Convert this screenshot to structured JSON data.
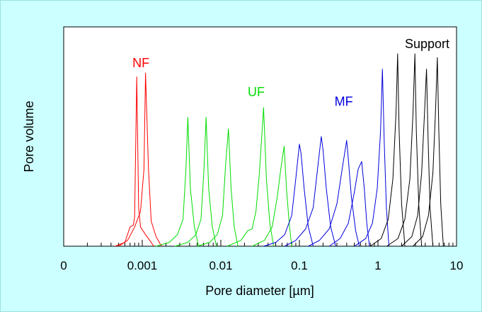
{
  "chart_data": {
    "type": "line",
    "title": "",
    "xlabel": "Pore diameter  [µm]",
    "ylabel": "Pore volume",
    "x_scale": "log",
    "xlim": [
      0.0001,
      10
    ],
    "ylim": [
      0,
      1
    ],
    "y_ticks_labeled": false,
    "grid": false,
    "x_ticks": [
      {
        "value": 0.0001,
        "label": "0"
      },
      {
        "value": 0.001,
        "label": "0.001"
      },
      {
        "value": 0.01,
        "label": "0.01"
      },
      {
        "value": 0.1,
        "label": "0.1"
      },
      {
        "value": 1,
        "label": "1"
      },
      {
        "value": 10,
        "label": "10"
      }
    ],
    "groups": [
      {
        "label": "NF",
        "color": "#ff0000",
        "label_x": 0.00075,
        "label_y": 0.93
      },
      {
        "label": "UF",
        "color": "#00dd00",
        "label_x": 0.022,
        "label_y": 0.78
      },
      {
        "label": "MF",
        "color": "#0000dd",
        "label_x": 0.28,
        "label_y": 0.73
      },
      {
        "label": "Support",
        "color": "#000000",
        "label_x": 2.2,
        "label_y": 1.03
      }
    ],
    "series": [
      {
        "group": "NF",
        "color": "#ff0000",
        "points": [
          [
            0.00045,
            0.0
          ],
          [
            0.0006,
            0.02
          ],
          [
            0.0007,
            0.1
          ],
          [
            0.00077,
            0.11
          ],
          [
            0.0008,
            0.15
          ],
          [
            0.00085,
            0.88
          ],
          [
            0.0009,
            0.2
          ],
          [
            0.00095,
            0.1
          ],
          [
            0.0011,
            0.06
          ],
          [
            0.0013,
            0.02
          ],
          [
            0.0014,
            0.0
          ]
        ]
      },
      {
        "group": "NF",
        "color": "#ff0000",
        "points": [
          [
            0.0005,
            0.0
          ],
          [
            0.00065,
            0.03
          ],
          [
            0.0008,
            0.1
          ],
          [
            0.00095,
            0.18
          ],
          [
            0.00105,
            0.4
          ],
          [
            0.0011,
            0.9
          ],
          [
            0.0012,
            0.4
          ],
          [
            0.0013,
            0.13
          ],
          [
            0.0015,
            0.05
          ],
          [
            0.0017,
            0.01
          ],
          [
            0.0018,
            0.0
          ]
        ]
      },
      {
        "group": "UF",
        "color": "#00dd00",
        "points": [
          [
            0.0015,
            0.0
          ],
          [
            0.0022,
            0.02
          ],
          [
            0.0028,
            0.06
          ],
          [
            0.0033,
            0.14
          ],
          [
            0.0036,
            0.4
          ],
          [
            0.0038,
            0.67
          ],
          [
            0.0041,
            0.3
          ],
          [
            0.0046,
            0.1
          ],
          [
            0.0052,
            0.0
          ]
        ]
      },
      {
        "group": "UF",
        "color": "#00dd00",
        "points": [
          [
            0.0026,
            0.0
          ],
          [
            0.0038,
            0.02
          ],
          [
            0.0048,
            0.06
          ],
          [
            0.0056,
            0.14
          ],
          [
            0.0061,
            0.4
          ],
          [
            0.0065,
            0.67
          ],
          [
            0.007,
            0.3
          ],
          [
            0.0078,
            0.1
          ],
          [
            0.0088,
            0.0
          ]
        ]
      },
      {
        "group": "UF",
        "color": "#00dd00",
        "points": [
          [
            0.005,
            0.0
          ],
          [
            0.0072,
            0.02
          ],
          [
            0.009,
            0.06
          ],
          [
            0.0105,
            0.16
          ],
          [
            0.0115,
            0.42
          ],
          [
            0.0125,
            0.61
          ],
          [
            0.0135,
            0.3
          ],
          [
            0.0148,
            0.1
          ],
          [
            0.0165,
            0.0
          ]
        ]
      },
      {
        "group": "UF",
        "color": "#00dd00",
        "points": [
          [
            0.012,
            0.0
          ],
          [
            0.018,
            0.03
          ],
          [
            0.022,
            0.08
          ],
          [
            0.025,
            0.09
          ],
          [
            0.028,
            0.18
          ],
          [
            0.031,
            0.38
          ],
          [
            0.035,
            0.72
          ],
          [
            0.038,
            0.35
          ],
          [
            0.042,
            0.12
          ],
          [
            0.047,
            0.0
          ]
        ]
      },
      {
        "group": "UF",
        "color": "#00dd00",
        "points": [
          [
            0.025,
            0.0
          ],
          [
            0.036,
            0.03
          ],
          [
            0.045,
            0.1
          ],
          [
            0.052,
            0.25
          ],
          [
            0.058,
            0.4
          ],
          [
            0.064,
            0.52
          ],
          [
            0.069,
            0.28
          ],
          [
            0.075,
            0.1
          ],
          [
            0.08,
            0.0
          ]
        ]
      },
      {
        "group": "MF",
        "color": "#0000dd",
        "points": [
          [
            0.035,
            0.0
          ],
          [
            0.05,
            0.02
          ],
          [
            0.065,
            0.06
          ],
          [
            0.08,
            0.16
          ],
          [
            0.09,
            0.35
          ],
          [
            0.1,
            0.53
          ],
          [
            0.105,
            0.48
          ],
          [
            0.115,
            0.3
          ],
          [
            0.13,
            0.1
          ],
          [
            0.15,
            0.0
          ]
        ]
      },
      {
        "group": "MF",
        "color": "#0000dd",
        "points": [
          [
            0.065,
            0.0
          ],
          [
            0.09,
            0.03
          ],
          [
            0.12,
            0.09
          ],
          [
            0.15,
            0.2
          ],
          [
            0.17,
            0.4
          ],
          [
            0.19,
            0.57
          ],
          [
            0.2,
            0.5
          ],
          [
            0.22,
            0.3
          ],
          [
            0.25,
            0.1
          ],
          [
            0.29,
            0.0
          ]
        ]
      },
      {
        "group": "MF",
        "color": "#0000dd",
        "points": [
          [
            0.13,
            0.0
          ],
          [
            0.18,
            0.03
          ],
          [
            0.24,
            0.09
          ],
          [
            0.3,
            0.22
          ],
          [
            0.35,
            0.4
          ],
          [
            0.4,
            0.55
          ],
          [
            0.42,
            0.45
          ],
          [
            0.46,
            0.25
          ],
          [
            0.52,
            0.08
          ],
          [
            0.58,
            0.0
          ]
        ]
      },
      {
        "group": "MF",
        "color": "#0000dd",
        "points": [
          [
            0.24,
            0.0
          ],
          [
            0.33,
            0.04
          ],
          [
            0.42,
            0.12
          ],
          [
            0.5,
            0.28
          ],
          [
            0.56,
            0.4
          ],
          [
            0.62,
            0.44
          ],
          [
            0.67,
            0.3
          ],
          [
            0.72,
            0.12
          ],
          [
            0.78,
            0.0
          ]
        ]
      },
      {
        "group": "MF",
        "color": "#0000dd",
        "points": [
          [
            0.5,
            0.0
          ],
          [
            0.7,
            0.04
          ],
          [
            0.85,
            0.12
          ],
          [
            0.98,
            0.3
          ],
          [
            1.08,
            0.6
          ],
          [
            1.14,
            0.92
          ],
          [
            1.2,
            0.55
          ],
          [
            1.28,
            0.2
          ],
          [
            1.38,
            0.0
          ]
        ]
      },
      {
        "group": "Support",
        "color": "#000000",
        "points": [
          [
            0.8,
            0.0
          ],
          [
            1.1,
            0.04
          ],
          [
            1.35,
            0.14
          ],
          [
            1.55,
            0.35
          ],
          [
            1.7,
            0.7
          ],
          [
            1.78,
            1.0
          ],
          [
            1.86,
            0.6
          ],
          [
            2.0,
            0.22
          ],
          [
            2.2,
            0.0
          ]
        ]
      },
      {
        "group": "Support",
        "color": "#000000",
        "points": [
          [
            1.3,
            0.0
          ],
          [
            1.8,
            0.04
          ],
          [
            2.2,
            0.14
          ],
          [
            2.55,
            0.35
          ],
          [
            2.8,
            0.7
          ],
          [
            2.95,
            1.0
          ],
          [
            3.08,
            0.6
          ],
          [
            3.3,
            0.22
          ],
          [
            3.6,
            0.0
          ]
        ]
      },
      {
        "group": "Support",
        "color": "#000000",
        "points": [
          [
            2.0,
            0.0
          ],
          [
            2.7,
            0.05
          ],
          [
            3.2,
            0.16
          ],
          [
            3.6,
            0.38
          ],
          [
            3.9,
            0.68
          ],
          [
            4.15,
            0.92
          ],
          [
            4.35,
            0.55
          ],
          [
            4.6,
            0.2
          ],
          [
            5.0,
            0.0
          ]
        ]
      },
      {
        "group": "Support",
        "color": "#000000",
        "points": [
          [
            2.8,
            0.0
          ],
          [
            3.7,
            0.05
          ],
          [
            4.4,
            0.16
          ],
          [
            5.0,
            0.38
          ],
          [
            5.4,
            0.7
          ],
          [
            5.7,
            0.98
          ],
          [
            5.95,
            0.6
          ],
          [
            6.3,
            0.22
          ],
          [
            6.8,
            0.0
          ]
        ]
      }
    ]
  }
}
